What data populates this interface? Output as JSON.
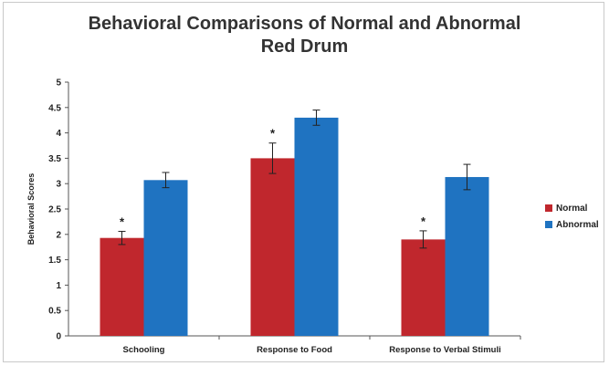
{
  "chart_data": {
    "type": "bar",
    "title": "Behavioral Comparisons of Normal and Abnormal Red Drum",
    "title_lines": [
      "Behavioral Comparisons of Normal and Abnormal",
      "Red Drum"
    ],
    "xlabel": "",
    "ylabel": "Behavioral Scores",
    "categories": [
      "Schooling",
      "Response to Food",
      "Response to Verbal Stimuli"
    ],
    "series": [
      {
        "name": "Normal",
        "color": "#c0272d",
        "values": [
          1.93,
          3.5,
          1.9
        ],
        "errors": [
          0.13,
          0.3,
          0.17
        ]
      },
      {
        "name": "Abnormal",
        "color": "#1f73c1",
        "values": [
          3.07,
          4.3,
          3.13
        ],
        "errors": [
          0.15,
          0.15,
          0.25
        ]
      }
    ],
    "significance_marks": [
      "*",
      "*",
      "*"
    ],
    "ylim": [
      0,
      5
    ],
    "yticks": [
      "0",
      "0.5",
      "1",
      "1.5",
      "2",
      "2.5",
      "3",
      "3.5",
      "4",
      "4.5",
      "5"
    ],
    "grid": false,
    "legend_position": "right"
  }
}
